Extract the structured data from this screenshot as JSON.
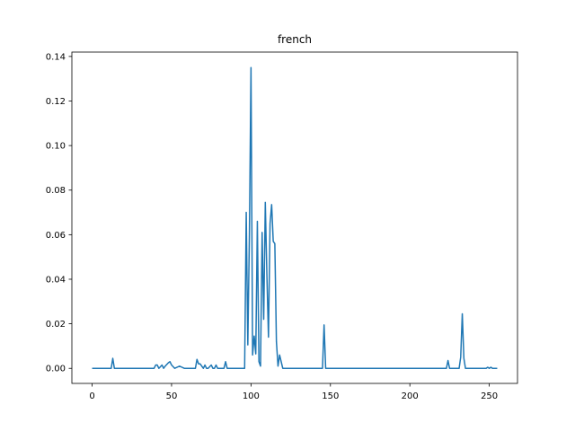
{
  "chart_data": {
    "type": "line",
    "title": "french",
    "xlabel": "",
    "ylabel": "",
    "xlim": [
      -12.75,
      267.75
    ],
    "ylim": [
      -0.00676,
      0.14196
    ],
    "xticks": [
      0,
      50,
      100,
      150,
      200,
      250
    ],
    "yticks": [
      0.0,
      0.02,
      0.04,
      0.06,
      0.08,
      0.1,
      0.12,
      0.14
    ],
    "ytick_labels": [
      "0.00",
      "0.02",
      "0.04",
      "0.06",
      "0.08",
      "0.10",
      "0.12",
      "0.14"
    ],
    "grid": false,
    "series_color": "#1f77b4",
    "series": [
      {
        "x": [
          0,
          12,
          13,
          14,
          39,
          40,
          41,
          42,
          44,
          45,
          46,
          48,
          49,
          50,
          52,
          55,
          58,
          65,
          66,
          67,
          68,
          70,
          71,
          72,
          73,
          75,
          76,
          77,
          78,
          79,
          80,
          83,
          84,
          85,
          86,
          96,
          97,
          98,
          99,
          100,
          101,
          102,
          103,
          104,
          105,
          106,
          107,
          108,
          109,
          110,
          111,
          112,
          113,
          114,
          115,
          116,
          117,
          118,
          119,
          120,
          121,
          122,
          145,
          146,
          147,
          223,
          224,
          225,
          231,
          232,
          233,
          234,
          235,
          248,
          249,
          250,
          251,
          252,
          255
        ],
        "y": [
          0,
          0,
          0.0045,
          0,
          0,
          0.0015,
          0.0015,
          0,
          0.0015,
          0,
          0.001,
          0.0025,
          0.003,
          0.0015,
          0,
          0.001,
          0,
          0,
          0.004,
          0.002,
          0.002,
          0,
          0.0015,
          0,
          0,
          0.0015,
          0,
          0,
          0.0015,
          0,
          0,
          0,
          0.003,
          0,
          0,
          0,
          0.07,
          0.0105,
          0.06,
          0.135,
          0.006,
          0.0145,
          0.0065,
          0.066,
          0.003,
          0.001,
          0.061,
          0.022,
          0.0745,
          0.042,
          0.014,
          0.065,
          0.0735,
          0.057,
          0.056,
          0.012,
          0.001,
          0.006,
          0.003,
          0,
          0,
          0,
          0,
          0.0195,
          0,
          0,
          0.0035,
          0,
          0,
          0.005,
          0.0245,
          0.0045,
          0,
          0,
          0.0005,
          0,
          0.0005,
          0,
          0
        ]
      }
    ]
  }
}
